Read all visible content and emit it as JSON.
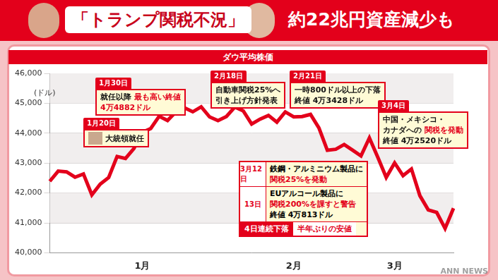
{
  "header": {
    "title": "「トランプ関税不況」",
    "subtitle": "約22兆円資産減少も"
  },
  "watermark": "ANN NEWS",
  "chart_data": {
    "type": "line",
    "title": "ダウ平均株価",
    "y_label": "(ドル)",
    "categories": [
      null,
      null,
      null,
      null,
      null,
      null,
      null,
      null,
      null,
      null,
      null,
      "1月",
      null,
      null,
      null,
      null,
      null,
      null,
      null,
      null,
      null,
      null,
      null,
      null,
      null,
      null,
      null,
      null,
      null,
      "2月",
      null,
      null,
      null,
      null,
      null,
      null,
      null,
      null,
      null,
      null,
      null,
      "3月",
      null,
      null,
      null,
      null,
      null,
      null,
      null
    ],
    "values": [
      42392,
      42732,
      42706,
      42528,
      42635,
      41938,
      42297,
      42518,
      43221,
      43153,
      43488,
      44025,
      44156,
      44565,
      44424,
      44713,
      44850,
      44714,
      44882,
      44544,
      44421,
      44556,
      44873,
      44747,
      44303,
      44470,
      44593,
      44368,
      44711,
      44546,
      44556,
      44627,
      44176,
      43428,
      43461,
      43621,
      43433,
      43240,
      43841,
      43191,
      42520,
      43006,
      42579,
      42802,
      41911,
      41433,
      41350,
      40813,
      41488
    ],
    "color": "#e3001b",
    "ylim": [
      40000,
      46000
    ],
    "yticks": [
      {
        "value": 40000,
        "label": "40,000"
      },
      {
        "value": 41000,
        "label": "41,000"
      },
      {
        "value": 42000,
        "label": "42,000"
      },
      {
        "value": 43000,
        "label": "43,000"
      },
      {
        "value": 44000,
        "label": "44,000"
      },
      {
        "value": 45000,
        "label": "45,000"
      },
      {
        "value": 46000,
        "label": "46,000"
      }
    ],
    "grid": true,
    "annotations": [
      {
        "date": "1月20日",
        "lines": [
          [
            {
              "text": "大統領就任"
            }
          ]
        ]
      },
      {
        "date": "1月30日",
        "lines": [
          [
            {
              "text": "就任以降"
            },
            {
              "text": "最も高い終値",
              "color": "#e3001b"
            }
          ],
          [
            {
              "text": "4万4882ドル",
              "color": "#e3001b"
            }
          ]
        ]
      },
      {
        "date": "2月18日",
        "lines": [
          [
            {
              "text": "自動車関税25%へ"
            }
          ],
          [
            {
              "text": "引き上げ方針発表"
            }
          ]
        ]
      },
      {
        "date": "2月21日",
        "lines": [
          [
            {
              "text": "一時800ドル以上の下落"
            }
          ],
          [
            {
              "text": "終値 4万3428ドル"
            }
          ]
        ]
      },
      {
        "date": "3月4日",
        "lines": [
          [
            {
              "text": "中国・メキシコ・"
            }
          ],
          [
            {
              "text": "カナダへの"
            },
            {
              "text": "関税を発動",
              "color": "#e3001b"
            }
          ],
          [
            {
              "text": "終値 4万2520ドル"
            }
          ]
        ]
      }
    ],
    "combined_annotation": {
      "items": [
        {
          "date": "3月12日",
          "lines": [
            [
              {
                "text": "鉄鋼・アルミニウム製品に"
              }
            ],
            [
              {
                "text": "関税25%を発動",
                "color": "#e3001b"
              }
            ]
          ]
        },
        {
          "date": "13日",
          "lines": [
            [
              {
                "text": "EUアルコール製品に"
              }
            ],
            [
              {
                "text": "関税200%を課すと警告",
                "color": "#e3001b"
              }
            ],
            [
              {
                "text": "終値 4万813ドル"
              }
            ]
          ]
        }
      ],
      "footer": [
        {
          "text": "4日連続下落"
        },
        {
          "text": "半年ぶりの安値"
        }
      ]
    }
  }
}
